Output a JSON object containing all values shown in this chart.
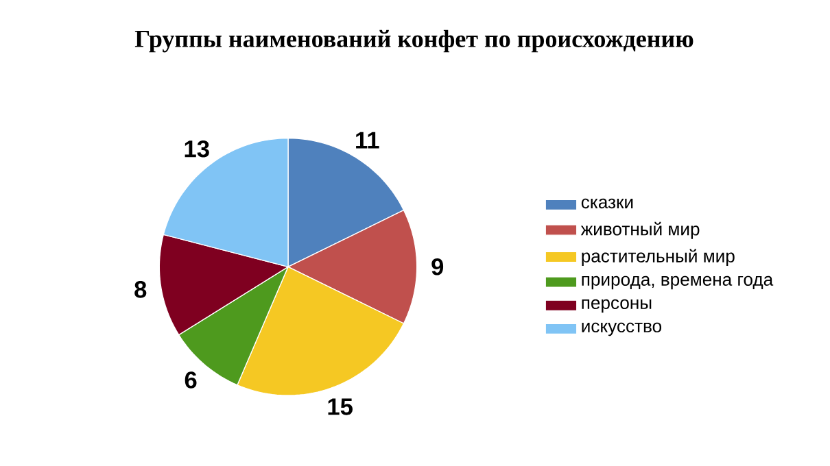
{
  "chart_data": {
    "type": "pie",
    "title": "Группы наименований конфет по происхождению",
    "categories": [
      "сказки",
      "животный мир",
      "растительный мир",
      "природа, времена года",
      "персоны",
      "искусство"
    ],
    "values": [
      11,
      9,
      15,
      6,
      8,
      13
    ],
    "colors": [
      "#4f81bd",
      "#c0504d",
      "#f5c823",
      "#4e9a1e",
      "#7f0020",
      "#80c4f5"
    ],
    "data_labels": true,
    "legend": "right"
  }
}
